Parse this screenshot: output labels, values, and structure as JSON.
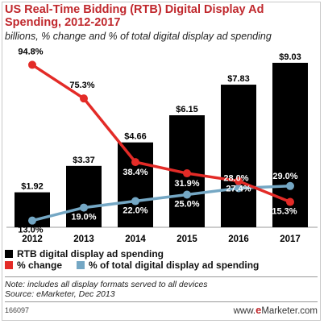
{
  "title": "US Real-Time Bidding (RTB) Digital Display Ad Spending, 2012-2017",
  "subtitle": "billions, % change and % of total digital display ad spending",
  "chart_data": {
    "type": "bar",
    "categories": [
      "2012",
      "2013",
      "2014",
      "2015",
      "2016",
      "2017"
    ],
    "series": [
      {
        "name": "RTB digital display ad spending",
        "kind": "bar",
        "color": "#000000",
        "values": [
          1.92,
          3.37,
          4.66,
          6.15,
          7.83,
          9.03
        ],
        "labels": [
          "$1.92",
          "$3.37",
          "$4.66",
          "$6.15",
          "$7.83",
          "$9.03"
        ]
      },
      {
        "name": "% change",
        "kind": "line",
        "color": "#e32b27",
        "values": [
          94.8,
          75.3,
          38.4,
          31.9,
          27.4,
          15.3
        ],
        "labels": [
          "94.8%",
          "75.3%",
          "38.4%",
          "31.9%",
          "27.4%",
          "15.3%"
        ]
      },
      {
        "name": "% of total digital display ad spending",
        "kind": "line",
        "color": "#74a7c4",
        "values": [
          13.0,
          19.0,
          22.0,
          25.0,
          28.0,
          29.0
        ],
        "labels": [
          "13.0%",
          "19.0%",
          "22.0%",
          "25.0%",
          "28.0%",
          "29.0%"
        ]
      }
    ],
    "legend_position": "bottom"
  },
  "legend": {
    "bar_label": "RTB digital display ad spending",
    "change_label": "% change",
    "share_label": "% of total digital display ad spending"
  },
  "note": {
    "line1": "Note: includes all display formats served to all devices",
    "line2": "Source: eMarketer, Dec 2013"
  },
  "footer": {
    "id": "166097",
    "brand_prefix": "www.",
    "brand_e": "e",
    "brand_rest": "Marketer.com"
  }
}
